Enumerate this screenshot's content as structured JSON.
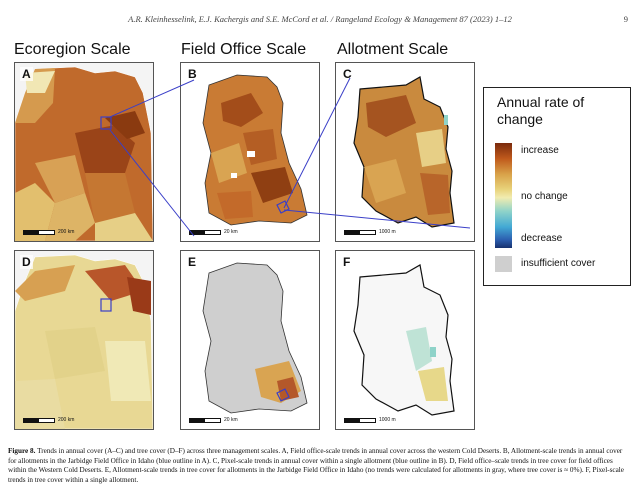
{
  "header": {
    "running_head": "A.R. Kleinhesselink, E.J. Kachergis and S.E. McCord et al. / Rangeland Ecology & Management 87 (2023) 1–12",
    "page_number": "9"
  },
  "scale_titles": {
    "ecoregion": "Ecoregion Scale",
    "field_office": "Field Office Scale",
    "allotment": "Allotment Scale"
  },
  "panels": {
    "a": {
      "label": "A",
      "scalebar": "200 km"
    },
    "b": {
      "label": "B",
      "scalebar": "20 km"
    },
    "c": {
      "label": "C",
      "scalebar": "1000 m"
    },
    "d": {
      "label": "D",
      "scalebar": "200 km"
    },
    "e": {
      "label": "E",
      "scalebar": "20 km"
    },
    "f": {
      "label": "F",
      "scalebar": "1000 m"
    }
  },
  "legend": {
    "title_line1": "Annual rate of",
    "title_line2": "change",
    "increase": "increase",
    "no_change": "no change",
    "decrease": "decrease",
    "insufficient": "insufficient cover"
  },
  "caption": {
    "label": "Figure 8.",
    "text": "Trends in annual cover (A–C) and tree cover (D–F) across three management scales. A, Field office-scale trends in annual cover across the western Cold Deserts. B, Allotment-scale trends in annual cover for allotments in the Jarbidge Field Office in Idaho (blue outline in A). C, Pixel-scale trends in annual cover within a single allotment (blue outline in B). D, Field office–scale trends in tree cover for field offices within the Western Cold Deserts. E, Allotment-scale trends in tree cover for allotments in the Jarbidge Field Office in Idaho (no trends were calculated for allotments in gray, where tree cover is ≈ 0%). F, Pixel-scale trends in tree cover within a single allotment."
  },
  "colors": {
    "strong_increase": "#8a3a10",
    "increase": "#c0672a",
    "mild_increase": "#dba65a",
    "no_change": "#efe6a8",
    "decrease": "#2c5fb0",
    "insufficient": "#cfcfcf",
    "outline_blue": "#3a3fc8"
  }
}
